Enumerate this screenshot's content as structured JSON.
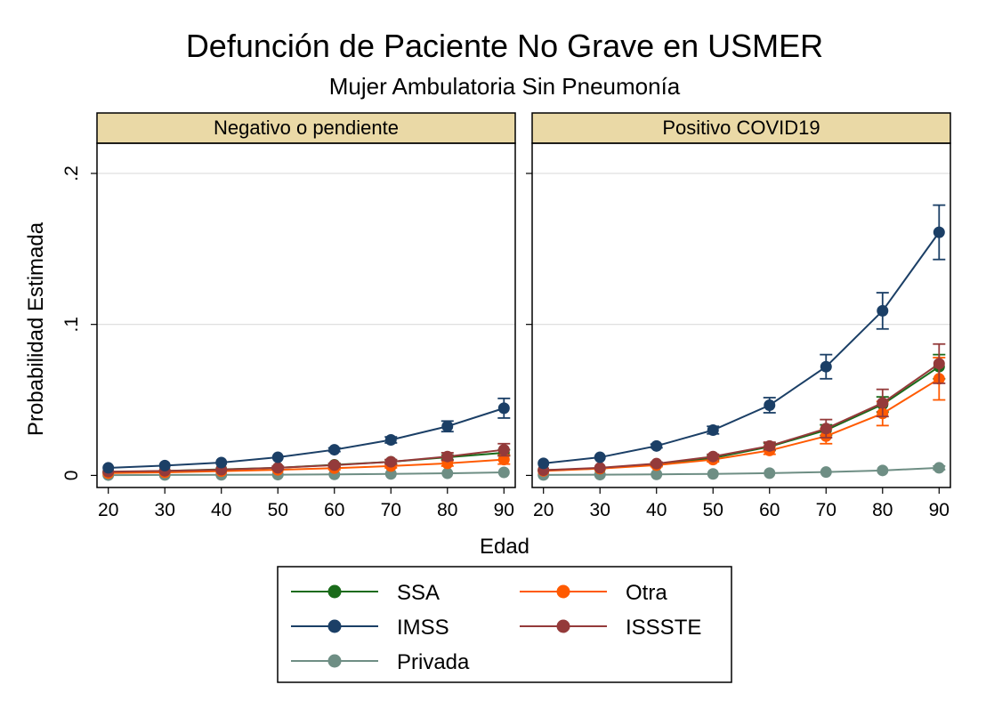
{
  "chart_data": {
    "type": "line",
    "title": "Defunción de Paciente No Grave en USMER",
    "subtitle": "Mujer Ambulatoria Sin Pneumonía",
    "xlabel": "Edad",
    "ylabel": "Probabilidad Estimada",
    "x": [
      20,
      30,
      40,
      50,
      60,
      70,
      80,
      90
    ],
    "x_ticks": [
      "20",
      "30",
      "40",
      "50",
      "60",
      "70",
      "80",
      "90"
    ],
    "y_ticks": [
      {
        "value": 0,
        "label": "0"
      },
      {
        "value": 0.1,
        "label": ".1"
      },
      {
        "value": 0.2,
        "label": ".2"
      }
    ],
    "ylim": [
      -0.008,
      0.22
    ],
    "xlim": [
      18,
      92
    ],
    "grid": true,
    "legend_position": "bottom",
    "panels": [
      {
        "label": "Negativo o pendiente",
        "series": [
          {
            "name": "SSA",
            "color": "#1a6b1a",
            "values": [
              0.002,
              0.003,
              0.004,
              0.005,
              0.007,
              0.009,
              0.012,
              0.015
            ],
            "err": [
              0.0005,
              0.0005,
              0.0007,
              0.0008,
              0.001,
              0.0012,
              0.0015,
              0.002
            ]
          },
          {
            "name": "IMSS",
            "color": "#1b3f66",
            "values": [
              0.005,
              0.0065,
              0.0085,
              0.012,
              0.017,
              0.0235,
              0.0325,
              0.0445
            ],
            "err": [
              0.0004,
              0.0005,
              0.0006,
              0.0008,
              0.0012,
              0.002,
              0.0035,
              0.0065
            ]
          },
          {
            "name": "Otra",
            "color": "#ff5a00",
            "values": [
              0.0015,
              0.002,
              0.0028,
              0.0037,
              0.0048,
              0.0062,
              0.008,
              0.0105
            ],
            "err": [
              0.0005,
              0.0005,
              0.0007,
              0.0008,
              0.001,
              0.0012,
              0.0018,
              0.003
            ]
          },
          {
            "name": "ISSSTE",
            "color": "#943a3a",
            "values": [
              0.0025,
              0.003,
              0.0038,
              0.005,
              0.0068,
              0.009,
              0.0125,
              0.017
            ],
            "err": [
              0.0005,
              0.0006,
              0.0008,
              0.001,
              0.0012,
              0.0015,
              0.0025,
              0.004
            ]
          },
          {
            "name": "Privada",
            "color": "#6e8e84",
            "values": [
              0.0002,
              0.0003,
              0.0004,
              0.0005,
              0.0007,
              0.001,
              0.0014,
              0.002
            ],
            "err": [
              0.0001,
              0.0001,
              0.0001,
              0.0002,
              0.0002,
              0.0003,
              0.0004,
              0.0006
            ]
          }
        ]
      },
      {
        "label": "Positivo COVID19",
        "series": [
          {
            "name": "SSA",
            "color": "#1a6b1a",
            "values": [
              0.0035,
              0.0045,
              0.0075,
              0.0115,
              0.019,
              0.03,
              0.047,
              0.072
            ],
            "err": [
              0.0005,
              0.0007,
              0.001,
              0.0015,
              0.0025,
              0.0035,
              0.005,
              0.008
            ]
          },
          {
            "name": "IMSS",
            "color": "#1b3f66",
            "values": [
              0.008,
              0.012,
              0.0195,
              0.03,
              0.0465,
              0.072,
              0.109,
              0.161
            ],
            "err": [
              0.0006,
              0.0008,
              0.0012,
              0.0025,
              0.005,
              0.008,
              0.012,
              0.018
            ]
          },
          {
            "name": "Otra",
            "color": "#ff5a00",
            "values": [
              0.003,
              0.0045,
              0.0068,
              0.0105,
              0.0165,
              0.026,
              0.041,
              0.064
            ],
            "err": [
              0.0005,
              0.0007,
              0.001,
              0.0015,
              0.0025,
              0.005,
              0.008,
              0.014
            ]
          },
          {
            "name": "ISSSTE",
            "color": "#943a3a",
            "values": [
              0.0035,
              0.005,
              0.0078,
              0.0125,
              0.0195,
              0.031,
              0.048,
              0.074
            ],
            "err": [
              0.0005,
              0.0007,
              0.001,
              0.0015,
              0.0025,
              0.006,
              0.009,
              0.013
            ]
          },
          {
            "name": "Privada",
            "color": "#6e8e84",
            "values": [
              0.0003,
              0.0005,
              0.0007,
              0.001,
              0.0015,
              0.0022,
              0.0033,
              0.005
            ],
            "err": [
              0.0001,
              0.0001,
              0.0002,
              0.0002,
              0.0003,
              0.0004,
              0.0006,
              0.0012
            ]
          }
        ]
      }
    ],
    "legend": [
      {
        "name": "SSA",
        "color": "#1a6b1a"
      },
      {
        "name": "Otra",
        "color": "#ff5a00"
      },
      {
        "name": "IMSS",
        "color": "#1b3f66"
      },
      {
        "name": "ISSSTE",
        "color": "#943a3a"
      },
      {
        "name": "Privada",
        "color": "#6e8e84"
      }
    ],
    "strip_color": "#ead9a6"
  }
}
